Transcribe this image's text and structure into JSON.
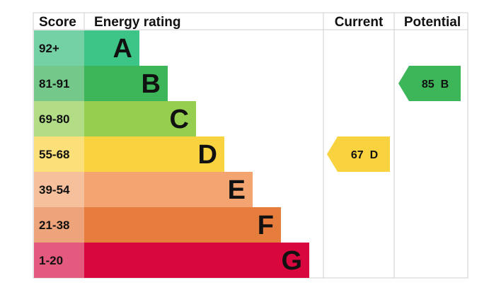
{
  "chart_data": {
    "type": "table",
    "columns": {
      "score": "Score",
      "rating": "Energy rating",
      "current": "Current",
      "potential": "Potential"
    },
    "bands": [
      {
        "score": "92+",
        "letter": "A",
        "color": "#3cc586",
        "score_bg": "#74d1a5"
      },
      {
        "score": "81-91",
        "letter": "B",
        "color": "#3db659",
        "score_bg": "#74c88a"
      },
      {
        "score": "69-80",
        "letter": "C",
        "color": "#96cf50",
        "score_bg": "#b3dc87"
      },
      {
        "score": "55-68",
        "letter": "D",
        "color": "#f9d33f",
        "score_bg": "#fbe07a"
      },
      {
        "score": "39-54",
        "letter": "E",
        "color": "#f3a471",
        "score_bg": "#f6c09c"
      },
      {
        "score": "21-38",
        "letter": "F",
        "color": "#e67d3c",
        "score_bg": "#eda47a"
      },
      {
        "score": "1-20",
        "letter": "G",
        "color": "#d8083f",
        "score_bg": "#e45a7e"
      }
    ],
    "current": {
      "value": 67,
      "letter": "D",
      "label": "67  D",
      "color": "#f9d33f"
    },
    "potential": {
      "value": 85,
      "letter": "B",
      "label": "85  B",
      "color": "#3db659"
    }
  }
}
